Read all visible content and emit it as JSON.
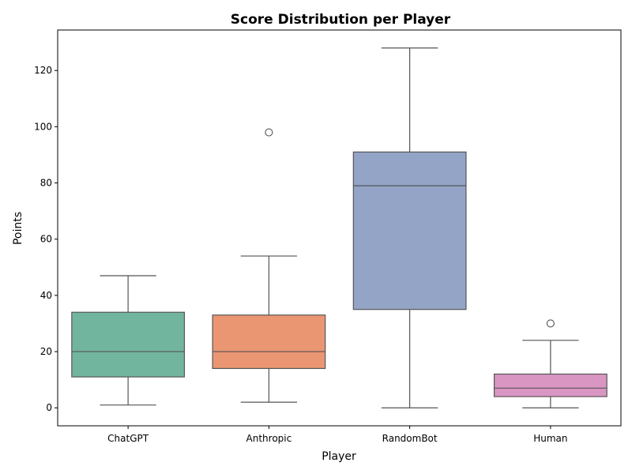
{
  "chart_data": {
    "type": "box",
    "title": "Score Distribution per Player",
    "xlabel": "Player",
    "ylabel": "Points",
    "ylim": [
      -6.4,
      134.4
    ],
    "yticks": [
      0,
      20,
      40,
      60,
      80,
      100,
      120
    ],
    "grid": false,
    "legend": "none",
    "line_color": "#555555",
    "categories": [
      "ChatGPT",
      "Anthropic",
      "RandomBot",
      "Human"
    ],
    "boxes": [
      {
        "category": "ChatGPT",
        "whisker_low": 1,
        "q1": 11,
        "median": 20,
        "q3": 34,
        "whisker_high": 47,
        "outliers": [],
        "color": "#72b59f"
      },
      {
        "category": "Anthropic",
        "whisker_low": 2,
        "q1": 14,
        "median": 20,
        "q3": 33,
        "whisker_high": 54,
        "outliers": [
          98
        ],
        "color": "#eb9673"
      },
      {
        "category": "RandomBot",
        "whisker_low": 0,
        "q1": 35,
        "median": 79,
        "q3": 91,
        "whisker_high": 128,
        "outliers": [],
        "color": "#93a4c6"
      },
      {
        "category": "Human",
        "whisker_low": 0,
        "q1": 4,
        "median": 7,
        "q3": 12,
        "whisker_high": 24,
        "outliers": [
          30
        ],
        "color": "#da96c2"
      }
    ]
  }
}
